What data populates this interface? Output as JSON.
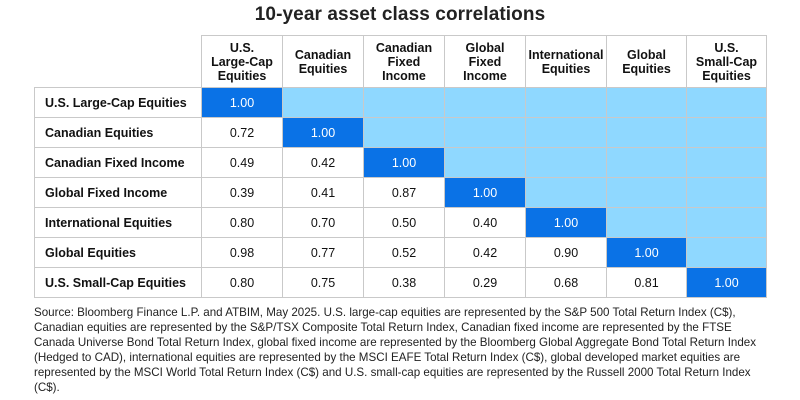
{
  "title": "10-year asset class correlations",
  "chart_data": {
    "type": "table",
    "title": "10-year asset class correlations",
    "columns": [
      "U.S.\nLarge-Cap\nEquities",
      "Canadian\nEquities",
      "Canadian\nFixed\nIncome",
      "Global\nFixed\nIncome",
      "International\nEquities",
      "Global\nEquities",
      "U.S.\nSmall-Cap\nEquities"
    ],
    "rows": [
      "U.S. Large-Cap Equities",
      "Canadian Equities",
      "Canadian Fixed Income",
      "Global Fixed Income",
      "International Equities",
      "Global Equities",
      "U.S. Small-Cap Equities"
    ],
    "values": [
      [
        "1.00"
      ],
      [
        "0.72",
        "1.00"
      ],
      [
        "0.49",
        "0.42",
        "1.00"
      ],
      [
        "0.39",
        "0.41",
        "0.87",
        "1.00"
      ],
      [
        "0.80",
        "0.70",
        "0.50",
        "0.40",
        "1.00"
      ],
      [
        "0.98",
        "0.77",
        "0.52",
        "0.42",
        "0.90",
        "1.00"
      ],
      [
        "0.80",
        "0.75",
        "0.38",
        "0.29",
        "0.68",
        "0.81",
        "1.00"
      ]
    ],
    "colors": {
      "diagonal": "#0a72e6",
      "upper_triangle": "#8fd8ff",
      "lower_triangle": "#ffffff",
      "grid": "#c9c9c9"
    }
  },
  "source": "Source: Bloomberg Finance L.P. and ATBIM, May 2025. U.S. large-cap equities are represented by the S&P 500 Total Return Index (C$), Canadian equities are represented by the S&P/TSX Composite Total Return Index, Canadian fixed income are represented by the FTSE Canada Universe Bond Total Return Index, global fixed income are represented by the Bloomberg Global Aggregate Bond Total Return Index (Hedged to CAD), international equities are represented by the MSCI EAFE Total Return Index (C$), global developed market equities are represented by the MSCI World Total Return Index (C$) and U.S. small-cap equities are represented by the Russell 2000 Total Return Index (C$)."
}
